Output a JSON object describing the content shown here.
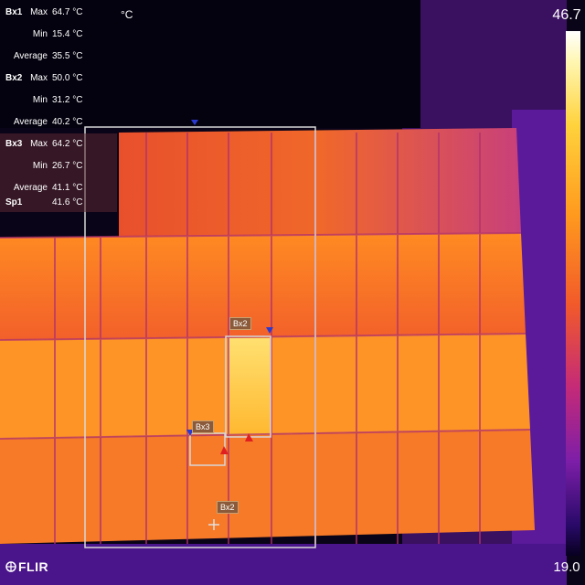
{
  "measurements": [
    {
      "box": "Bx1",
      "label": "Max",
      "value": "64.7 °C"
    },
    {
      "box": "",
      "label": "Min",
      "value": "15.4 °C"
    },
    {
      "box": "",
      "label": "Average",
      "value": "35.5 °C"
    },
    {
      "box": "Bx2",
      "label": "Max",
      "value": "50.0 °C"
    },
    {
      "box": "",
      "label": "Min",
      "value": "31.2 °C"
    },
    {
      "box": "",
      "label": "Average",
      "value": "40.2 °C"
    },
    {
      "box": "Bx3",
      "label": "Max",
      "value": "64.2 °C"
    },
    {
      "box": "",
      "label": "Min",
      "value": "26.7 °C"
    },
    {
      "box": "",
      "label": "Average",
      "value": "41.1 °C"
    },
    {
      "box": "Sp1",
      "label": "",
      "value": "41.6 °C"
    }
  ],
  "unit": "°C",
  "scale": {
    "max": "46.7",
    "min": "19.0"
  },
  "logo": "FLIR",
  "box_tags": {
    "bx2": "Bx2",
    "bx3": "Bx3",
    "sp": "Bx2"
  }
}
